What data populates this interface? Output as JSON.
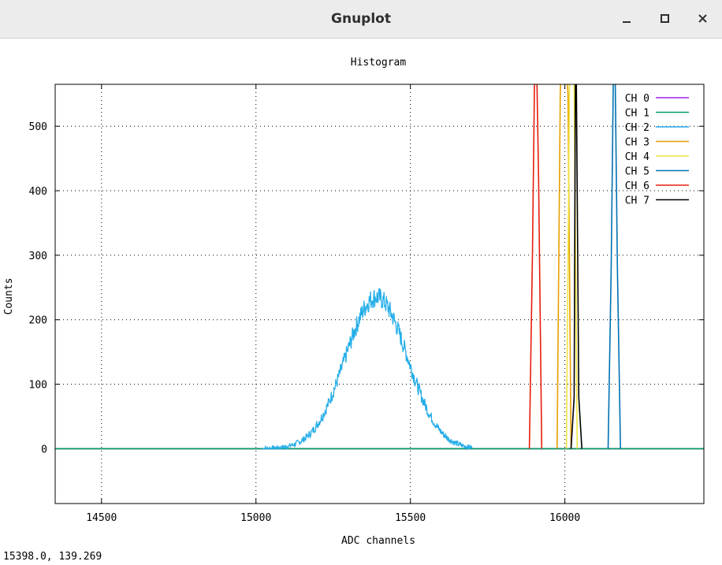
{
  "window": {
    "title": "Gnuplot",
    "buttons": {
      "minimize": "minimize-icon",
      "maximize": "maximize-icon",
      "close": "close-icon"
    }
  },
  "status": {
    "coords": "15398.0,  139.269"
  },
  "chart_data": {
    "type": "line",
    "title": "Histogram",
    "xlabel": "ADC channels",
    "ylabel": "Counts",
    "xlim": [
      14350,
      16450
    ],
    "ylim": [
      -85,
      565
    ],
    "xticks": [
      14500,
      15000,
      15500,
      16000
    ],
    "yticks": [
      0,
      100,
      200,
      300,
      400,
      500
    ],
    "grid": true,
    "legend_position": "top-right",
    "series": [
      {
        "name": "CH 0",
        "color": "#a020f0",
        "shape": "flat",
        "x": [
          14350,
          16450
        ],
        "y": [
          0,
          0
        ]
      },
      {
        "name": "CH 1",
        "color": "#00a060",
        "shape": "flat",
        "x": [
          14350,
          16450
        ],
        "y": [
          0,
          0
        ]
      },
      {
        "name": "CH 2",
        "color": "#25aee8",
        "shape": "gaussian",
        "mean": 15390,
        "sigma": 100,
        "peak": 235,
        "noise": 20,
        "x": [
          15020,
          15700
        ]
      },
      {
        "name": "CH 3",
        "color": "#e69f00",
        "shape": "spike",
        "x": [
          15975,
          15985,
          15995,
          16010,
          16020
        ],
        "y": [
          0,
          550,
          700,
          550,
          0
        ]
      },
      {
        "name": "CH 4",
        "color": "#f0e442",
        "shape": "spike",
        "x": [
          16005,
          16015,
          16025,
          16030,
          16040
        ],
        "y": [
          0,
          560,
          700,
          560,
          0
        ]
      },
      {
        "name": "CH 5",
        "color": "#0072b2",
        "shape": "spike",
        "x": [
          16140,
          16150,
          16160,
          16170,
          16180
        ],
        "y": [
          0,
          280,
          700,
          280,
          0
        ]
      },
      {
        "name": "CH 6",
        "color": "#e51e10",
        "shape": "spike",
        "x": [
          15885,
          15895,
          15905,
          15915,
          15925
        ],
        "y": [
          0,
          300,
          700,
          420,
          0
        ]
      },
      {
        "name": "CH 7",
        "color": "#000000",
        "shape": "spike",
        "x": [
          16020,
          16030,
          16035,
          16045,
          16055
        ],
        "y": [
          0,
          80,
          700,
          80,
          0
        ]
      }
    ]
  }
}
